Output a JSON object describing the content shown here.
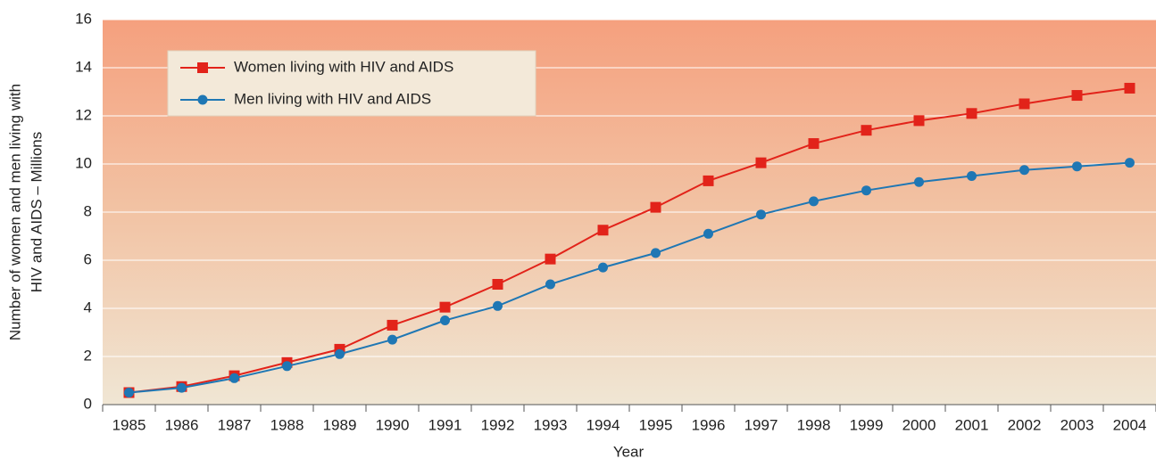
{
  "chart_data": {
    "type": "line",
    "categories": [
      "1985",
      "1986",
      "1987",
      "1988",
      "1989",
      "1990",
      "1991",
      "1992",
      "1993",
      "1994",
      "1995",
      "1996",
      "1997",
      "1998",
      "1999",
      "2000",
      "2001",
      "2002",
      "2003",
      "2004"
    ],
    "series": [
      {
        "name": "Women living with HIV and AIDS",
        "color": "#e2231a",
        "marker": "square",
        "values": [
          0.5,
          0.75,
          1.2,
          1.75,
          2.3,
          3.3,
          4.05,
          5.0,
          6.05,
          7.25,
          8.2,
          9.3,
          10.05,
          10.85,
          11.4,
          11.8,
          12.1,
          12.5,
          12.85,
          13.15
        ]
      },
      {
        "name": "Men living with HIV and AIDS",
        "color": "#1f77b4",
        "marker": "circle",
        "values": [
          0.5,
          0.7,
          1.1,
          1.6,
          2.1,
          2.7,
          3.5,
          4.1,
          5.0,
          5.7,
          6.3,
          7.1,
          7.9,
          8.45,
          8.9,
          9.25,
          9.5,
          9.75,
          9.9,
          10.05
        ]
      }
    ],
    "xlabel": "Year",
    "ylabel": [
      "Number of women and men living with",
      "HIV and AIDS – Millions"
    ],
    "ylim": [
      0,
      16
    ],
    "yticks": [
      0,
      2,
      4,
      6,
      8,
      10,
      12,
      14,
      16
    ],
    "grid": true,
    "legend": "upper left"
  }
}
